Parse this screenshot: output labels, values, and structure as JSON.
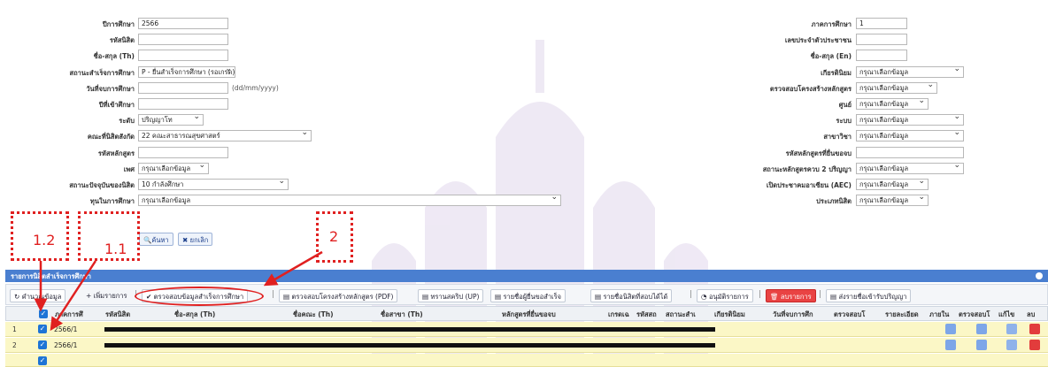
{
  "form": {
    "left": [
      {
        "label": "ปีการศึกษา",
        "value": "2566",
        "select": false
      },
      {
        "label": "รหัสนิสิต",
        "value": "",
        "select": false
      },
      {
        "label": "ชื่อ-สกุล (Th)",
        "value": "",
        "select": false
      },
      {
        "label": "สถานะสำเร็จการศึกษา",
        "value": "P - ยื่นสำเร็จการศึกษา (รอเกรด)",
        "select": true
      },
      {
        "label": "วันที่จบการศึกษา",
        "value": "",
        "select": false,
        "hint": "(dd/mm/yyyy)"
      },
      {
        "label": "ปีที่เข้าศึกษา",
        "value": "",
        "select": false
      },
      {
        "label": "ระดับ",
        "value": "ปริญญาโท",
        "select": true
      },
      {
        "label": "คณะที่นิสิตสังกัด",
        "value": "22 คณะสาธารณสุขศาสตร์",
        "select": true
      },
      {
        "label": "รหัสหลักสูตร",
        "value": "",
        "select": false
      },
      {
        "label": "เพศ",
        "value": "กรุณาเลือกข้อมูล",
        "select": true
      },
      {
        "label": "สถานะปัจจุบันของนิสิต",
        "value": "10 กำลังศึกษา",
        "select": true
      },
      {
        "label": "ทุนในการศึกษา",
        "value": "กรุณาเลือกข้อมูล",
        "select": true
      }
    ],
    "right": [
      {
        "label": "ภาคการศึกษา",
        "value": "1",
        "select": false
      },
      {
        "label": "เลขประจำตัวประชาชน",
        "value": "",
        "select": false
      },
      {
        "label": "ชื่อ-สกุล (En)",
        "value": "",
        "select": false
      },
      {
        "label": "เกียรตินิยม",
        "value": "กรุณาเลือกข้อมูล",
        "select": true
      },
      {
        "label": "ตรวจสอบโครงสร้างหลักสูตร",
        "value": "กรุณาเลือกข้อมูล",
        "select": true
      },
      {
        "label": "ศูนย์",
        "value": "กรุณาเลือกข้อมูล",
        "select": true
      },
      {
        "label": "ระบบ",
        "value": "กรุณาเลือกข้อมูล",
        "select": true
      },
      {
        "label": "สาขาวิชา",
        "value": "กรุณาเลือกข้อมูล",
        "select": true
      },
      {
        "label": "รหัสหลักสูตรที่ยื่นขอจบ",
        "value": "",
        "select": false
      },
      {
        "label": "สถานะหลักสูตรควบ 2 ปริญญา",
        "value": "กรุณาเลือกข้อมูล",
        "select": true
      },
      {
        "label": "เปิดประชาคมอาเซียน (AEC)",
        "value": "กรุณาเลือกข้อมูล",
        "select": true
      },
      {
        "label": "ประเภทนิสิต",
        "value": "กรุณาเลือกข้อมูล",
        "select": true
      }
    ],
    "search_label": "ค้นหา",
    "cancel_label": "ยกเลิก"
  },
  "panel_title": "รายการนิสิตสำเร็จการศึกษา",
  "toolbar": [
    "คำนวณข้อมูล",
    "+ เพิ่มรายการ",
    "ตรวจสอบข้อมูลสำเร็จการศึกษา",
    "ตรวจสอบโครงสร้างหลักสูตร (PDF)",
    "ทรานสคริป (UP)",
    "รายชื่อผู้ยื่นขอสำเร็จ",
    "รายชื่อนิสิตที่สอบได้ได้",
    "อนุมัติรายการ",
    "ลบรายการ",
    "ส่งรายชื่อเข้ารับปริญญา"
  ],
  "columns": [
    "ภาคการศึ",
    "รหัสนิสิต",
    "ชื่อ-สกุล (Th)",
    "ชื่อคณะ (Th)",
    "ชื่อสาขา (Th)",
    "หลักสูตรที่ยื่นขอจบ",
    "เกรดเฉ",
    "รหัสสถ",
    "สถานะสำเ",
    "เกียรตินิยม",
    "วันที่จบการศึก",
    "ตรวจสอบโ",
    "รายละเอียด",
    "ภายใน",
    "ตรวจสอบโ",
    "แก้ไข",
    "ลบ"
  ],
  "rows": [
    {
      "n": "1",
      "term": "2566/1"
    },
    {
      "n": "2",
      "term": "2566/1"
    }
  ],
  "annotations": [
    "1.2",
    "1.1",
    "2"
  ],
  "colors": {
    "accent": "#4a7fd0",
    "annotation": "#e02020",
    "row_bg": "#fbf7c6"
  }
}
